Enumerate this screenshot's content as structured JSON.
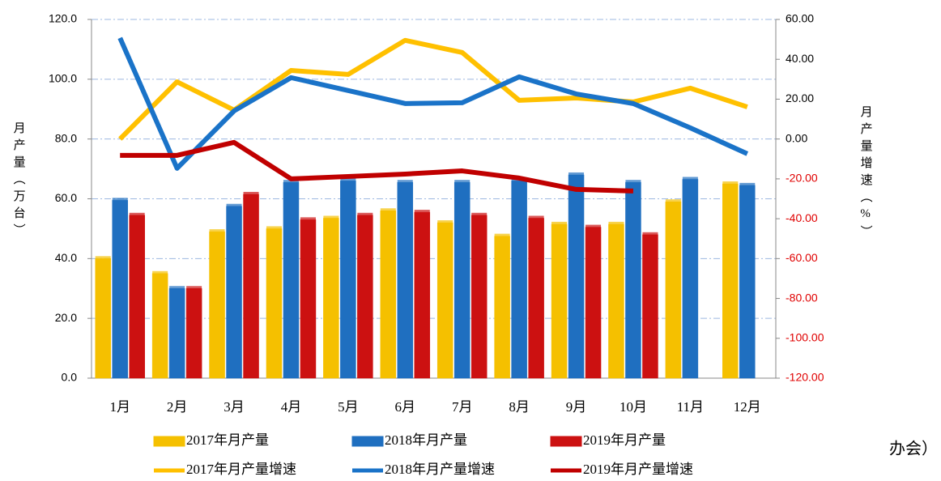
{
  "chart_data": {
    "type": "bar_line",
    "categories": [
      "1月",
      "2月",
      "3月",
      "4月",
      "5月",
      "6月",
      "7月",
      "8月",
      "9月",
      "10月",
      "11月",
      "12月"
    ],
    "y_label": "月产量（万台）",
    "y2_label": "月产量增速（%）",
    "annotation": "办会）",
    "ylim": [
      0,
      120
    ],
    "yticks": [
      {
        "value": 0,
        "label": "0.0"
      },
      {
        "value": 20,
        "label": "20.0"
      },
      {
        "value": 40,
        "label": "40.0"
      },
      {
        "value": 60,
        "label": "60.0"
      },
      {
        "value": 80,
        "label": "80.0"
      },
      {
        "value": 100,
        "label": "100.0"
      },
      {
        "value": 120,
        "label": "120.0"
      }
    ],
    "y2lim": [
      -120,
      60
    ],
    "y2ticks": [
      {
        "value": -120,
        "label": "-120.00"
      },
      {
        "value": -100,
        "label": "-100.00"
      },
      {
        "value": -80,
        "label": "-80.00"
      },
      {
        "value": -60,
        "label": "-60.00"
      },
      {
        "value": -40,
        "label": "-40.00"
      },
      {
        "value": -20,
        "label": "-20.00"
      },
      {
        "value": 0,
        "label": "0.00"
      },
      {
        "value": 20,
        "label": "20.00"
      },
      {
        "value": 40,
        "label": "40.00"
      },
      {
        "value": 60,
        "label": "60.00"
      }
    ],
    "y2_negative_color": "#e00000",
    "grid": true,
    "series": [
      {
        "name": "2017年月产量",
        "kind": "bar",
        "color": "#f5c000",
        "values": [
          40,
          35,
          49,
          50,
          53.5,
          56,
          52,
          47.5,
          51.5,
          51.5,
          59,
          65
        ]
      },
      {
        "name": "2018年月产量",
        "kind": "bar",
        "color": "#1f6fc0",
        "values": [
          59.5,
          30,
          57.5,
          65.5,
          66,
          65.5,
          65.5,
          66,
          68,
          65.5,
          66.5,
          64.5
        ]
      },
      {
        "name": "2019年月产量",
        "kind": "bar",
        "color": "#cc1111",
        "values": [
          54.5,
          30,
          61.5,
          53,
          54.5,
          55.5,
          54.5,
          53.5,
          50.5,
          48,
          null,
          null
        ]
      },
      {
        "name": "2017年月产量增速",
        "kind": "line",
        "axis": "y2",
        "color": "#ffc000",
        "values": [
          0,
          28.7,
          14.5,
          34.4,
          32.4,
          49.5,
          43.4,
          19.4,
          20.6,
          18.6,
          25.5,
          16.1
        ]
      },
      {
        "name": "2018年月产量增速",
        "kind": "line",
        "axis": "y2",
        "color": "#1a73c8",
        "values": [
          50.7,
          -14.7,
          14.1,
          30.8,
          24.3,
          17.8,
          18.2,
          31.2,
          22.6,
          17.8,
          5.6,
          -7.4
        ]
      },
      {
        "name": "2019年月产量增速",
        "kind": "line",
        "axis": "y2",
        "color": "#c00000",
        "values": [
          -8.2,
          -8.2,
          -1.7,
          -20,
          -18.8,
          -17.6,
          -16,
          -19.6,
          -25.3,
          -26.1,
          null,
          null
        ]
      }
    ]
  }
}
